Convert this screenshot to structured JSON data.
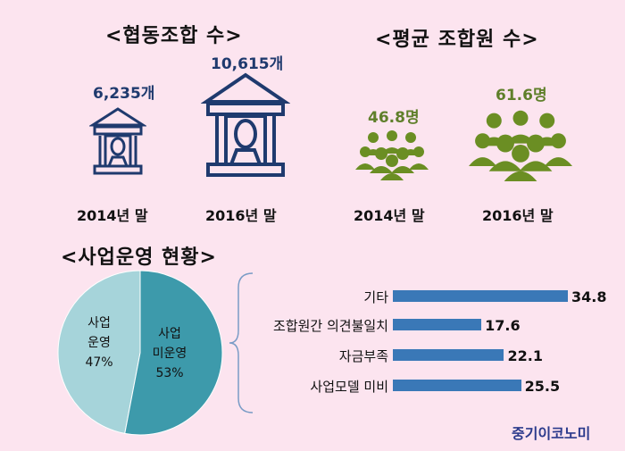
{
  "headings": {
    "coops": "<협동조합 수>",
    "members": "<평균 조합원 수>",
    "business": "<사업운영 현황>"
  },
  "coops": {
    "count_2014": "6,235개",
    "count_2016": "10,615개",
    "year_2014": "2014년 말",
    "year_2016": "2016년 말",
    "icon": "bank-building-icon"
  },
  "members": {
    "count_2014": "46.8명",
    "count_2016": "61.6명",
    "year_2014": "2014년 말",
    "year_2016": "2016년 말",
    "icon": "people-group-icon"
  },
  "pie": {
    "operating_line1": "사업",
    "operating_line2": "운영",
    "operating_pct": "47%",
    "not_operating_line1": "사업",
    "not_operating_line2": "미운영",
    "not_operating_pct": "53%"
  },
  "bars": {
    "items": [
      {
        "label": "기타",
        "value": "34.8"
      },
      {
        "label": "조합원간 의견불일치",
        "value": "17.6"
      },
      {
        "label": "자금부족",
        "value": "22.1"
      },
      {
        "label": "사업모델 미비",
        "value": "25.5"
      }
    ]
  },
  "brand": "중기이코노미",
  "colors": {
    "background": "#fce4ef",
    "navy": "#1f3a6e",
    "green": "#6b8e23",
    "pie_light": "#a6d4da",
    "pie_dark": "#3d9aab",
    "bar": "#3a78b7"
  },
  "chart_data": [
    {
      "type": "bar",
      "categories": [
        "2014년 말",
        "2016년 말"
      ],
      "values": [
        6235,
        10615
      ],
      "title": "<협동조합 수>"
    },
    {
      "type": "bar",
      "categories": [
        "2014년 말",
        "2016년 말"
      ],
      "values": [
        46.8,
        61.6
      ],
      "title": "<평균 조합원 수>"
    },
    {
      "type": "pie",
      "categories": [
        "사업 운영",
        "사업 미운영"
      ],
      "values": [
        47,
        53
      ],
      "title": "<사업운영 현황>"
    },
    {
      "type": "bar",
      "orientation": "horizontal",
      "categories": [
        "기타",
        "조합원간 의견불일치",
        "자금부족",
        "사업모델 미비"
      ],
      "values": [
        34.8,
        17.6,
        22.1,
        25.5
      ]
    }
  ]
}
